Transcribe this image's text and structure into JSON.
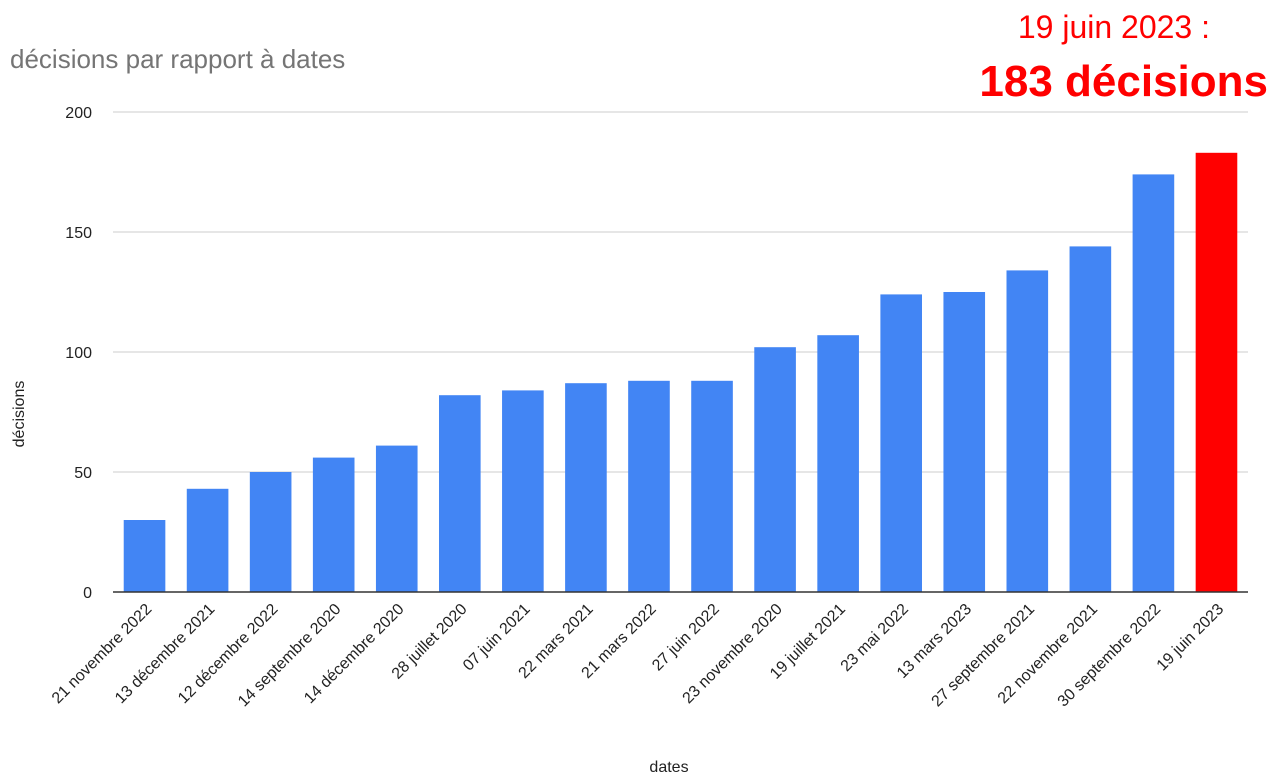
{
  "chart_data": {
    "type": "bar",
    "title": "décisions par rapport à dates",
    "xlabel": "dates",
    "ylabel": "décisions",
    "ylim": [
      0,
      200
    ],
    "yticks": [
      0,
      50,
      100,
      150,
      200
    ],
    "grid": true,
    "categories": [
      "21 novembre 2022",
      "13 décembre 2021",
      "12 décembre 2022",
      "14 septembre 2020",
      "14 décembre 2020",
      "28 juillet 2020",
      "07 juin 2021",
      "22 mars 2021",
      "21 mars 2022",
      "27 juin 2022",
      "23 novembre 2020",
      "19 juillet 2021",
      "23 mai 2022",
      "13 mars 2023",
      "27 septembre 2021",
      "22 novembre 2021",
      "30 septembre 2022",
      "19 juin 2023"
    ],
    "series": [
      {
        "values": [
          30,
          43,
          50,
          56,
          61,
          82,
          84,
          87,
          88,
          88,
          102,
          107,
          124,
          125,
          134,
          144,
          174,
          183
        ]
      }
    ],
    "highlight_index": 17,
    "annotation": {
      "date": "19 juin 2023 :",
      "value": "183 décisions"
    }
  },
  "colors": {
    "bar": "#4285f4",
    "highlight": "#ff0000",
    "annotation": "#ff0000",
    "title": "#757575",
    "grid": "#cccccc"
  }
}
